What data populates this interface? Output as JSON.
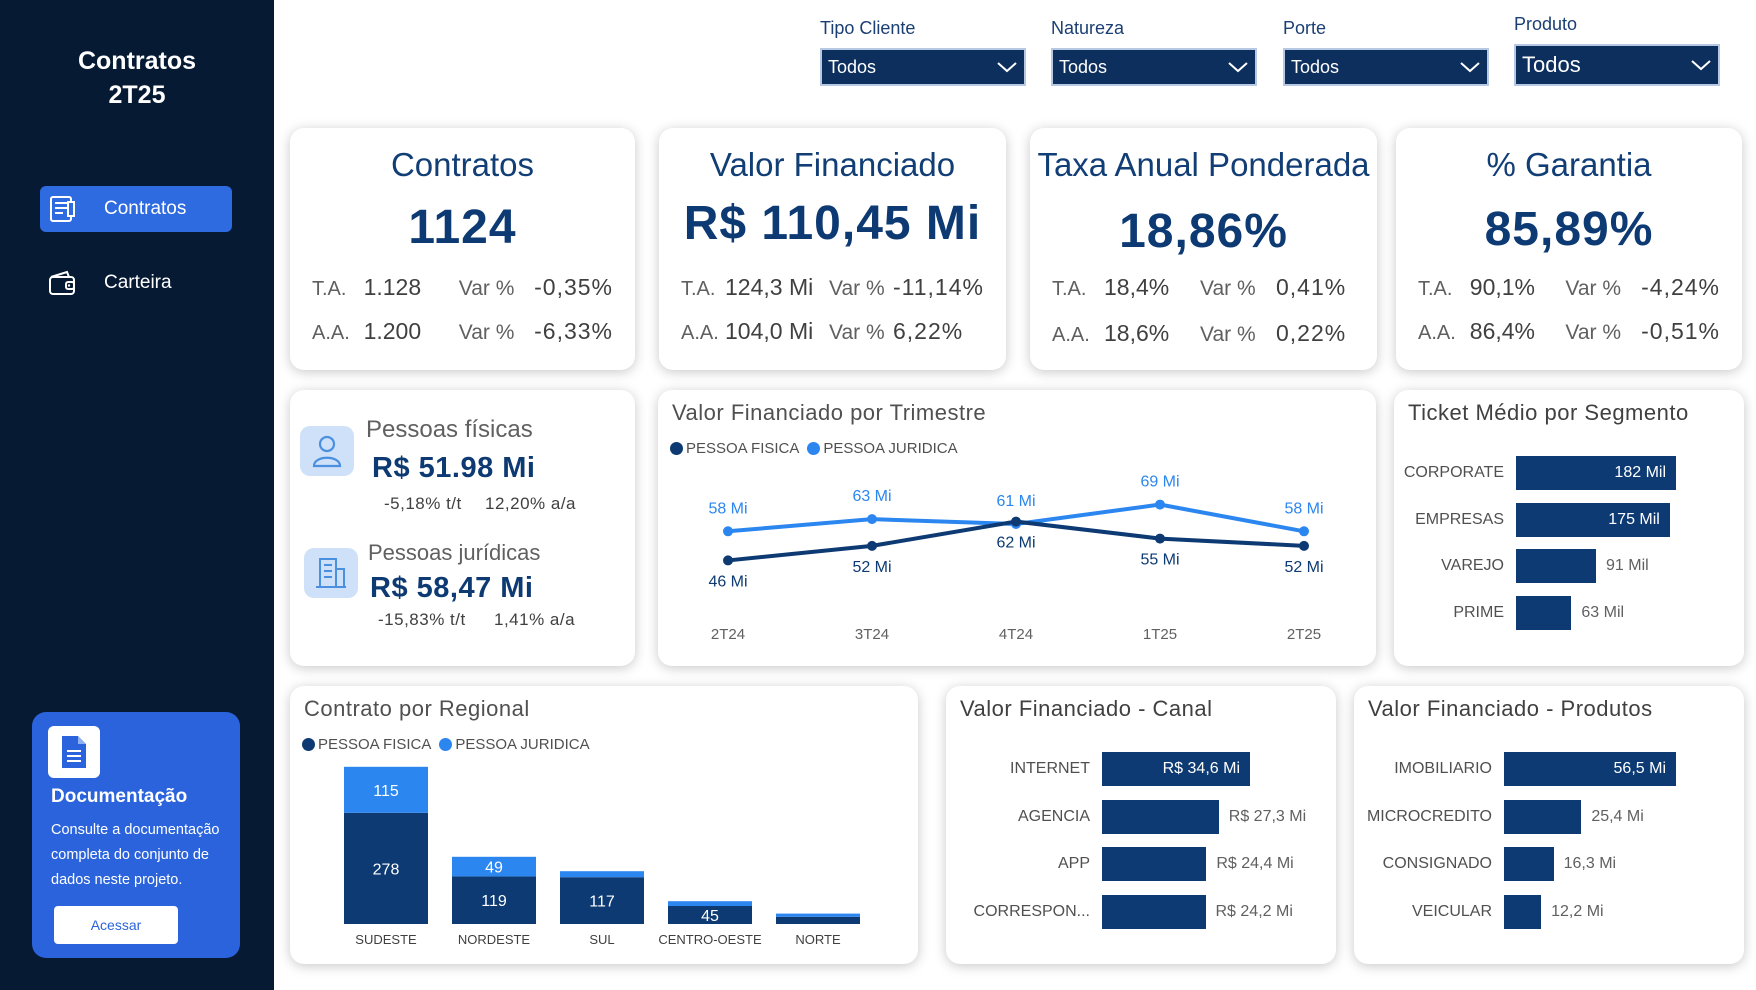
{
  "sidebar": {
    "title_line1": "Contratos",
    "title_line2": "2T25",
    "nav": [
      {
        "label": "Contratos",
        "icon": "document-list-icon",
        "active": true
      },
      {
        "label": "Carteira",
        "icon": "wallet-icon",
        "active": false
      }
    ],
    "doc_card": {
      "title": "Documentação",
      "text": "Consulte a documentação completa do conjunto de dados neste projeto.",
      "button": "Acessar"
    }
  },
  "filters": [
    {
      "label": "Tipo Cliente",
      "value": "Todos"
    },
    {
      "label": "Natureza",
      "value": "Todos"
    },
    {
      "label": "Porte",
      "value": "Todos"
    },
    {
      "label": "Produto",
      "value": "Todos"
    }
  ],
  "kpis": [
    {
      "title": "Contratos",
      "value": "1124",
      "ta_label": "T.A.",
      "ta": "1.128",
      "var_label": "Var %",
      "ta_var": "-0,35%",
      "aa_label": "A.A.",
      "aa": "1.200",
      "aa_var": "-6,33%"
    },
    {
      "title": "Valor Financiado",
      "value": "R$ 110,45 Mi",
      "ta_label": "T.A.",
      "ta": "124,3 Mi",
      "var_label": "Var %",
      "ta_var": "-11,14%",
      "aa_label": "A.A.",
      "aa": "104,0 Mi",
      "aa_var": "6,22%"
    },
    {
      "title": "Taxa Anual Ponderada",
      "value": "18,86%",
      "ta_label": "T.A.",
      "ta": "18,4%",
      "var_label": "Var %",
      "ta_var": "0,41%",
      "aa_label": "A.A.",
      "aa": "18,6%",
      "aa_var": "0,22%"
    },
    {
      "title": "% Garantia",
      "value": "85,89%",
      "ta_label": "T.A.",
      "ta": "90,1%",
      "var_label": "Var %",
      "ta_var": "-4,24%",
      "aa_label": "A.A.",
      "aa": "86,4%",
      "aa_var": "-0,51%"
    }
  ],
  "pessoas": {
    "fisicas": {
      "label": "Pessoas físicas",
      "value": "R$ 51.98 Mi",
      "tt": "-5,18% t/t",
      "aa": "12,20% a/a"
    },
    "juridicas": {
      "label": "Pessoas jurídicas",
      "value": "R$ 58,47 Mi",
      "tt": "-15,83% t/t",
      "aa": "1,41% a/a"
    }
  },
  "colors": {
    "dark": "#0d3a73",
    "light": "#2b86f0",
    "sidebar": "#061a33",
    "accent": "#2f6be0"
  },
  "chart_data": [
    {
      "type": "line",
      "title": "Valor Financiado por Trimestre",
      "categories": [
        "2T24",
        "3T24",
        "4T24",
        "1T25",
        "2T25"
      ],
      "series": [
        {
          "name": "PESSOA FISICA",
          "values": [
            46,
            52,
            62,
            55,
            52
          ],
          "labels": [
            "46 Mi",
            "52 Mi",
            "62 Mi",
            "55 Mi",
            "52 Mi"
          ]
        },
        {
          "name": "PESSOA JURIDICA",
          "values": [
            58,
            63,
            61,
            69,
            58
          ],
          "labels": [
            "58 Mi",
            "63 Mi",
            "61 Mi",
            "69 Mi",
            "58 Mi"
          ]
        }
      ]
    },
    {
      "type": "bar",
      "title": "Ticket Médio por Segmento",
      "categories": [
        "CORPORATE",
        "EMPRESAS",
        "VAREJO",
        "PRIME"
      ],
      "values": [
        182,
        175,
        91,
        63
      ],
      "labels": [
        "182 Mil",
        "175 Mil",
        "91 Mil",
        "63 Mil"
      ]
    },
    {
      "type": "bar",
      "stacked": true,
      "title": "Contrato por Regional",
      "categories": [
        "SUDESTE",
        "NORDESTE",
        "SUL",
        "CENTRO-OESTE",
        "NORTE"
      ],
      "series": [
        {
          "name": "PESSOA FISICA",
          "values": [
            278,
            119,
            117,
            45,
            18
          ],
          "labels": [
            "278",
            "119",
            "117",
            "45",
            ""
          ]
        },
        {
          "name": "PESSOA JURIDICA",
          "values": [
            115,
            49,
            15,
            12,
            8
          ],
          "labels": [
            "115",
            "49",
            "",
            "",
            ""
          ]
        }
      ]
    },
    {
      "type": "bar",
      "title": "Valor Financiado - Canal",
      "categories": [
        "INTERNET",
        "AGENCIA",
        "APP",
        "CORRESPON..."
      ],
      "values": [
        34.6,
        27.3,
        24.4,
        24.2
      ],
      "labels": [
        "R$ 34,6 Mi",
        "R$ 27,3 Mi",
        "R$ 24,4 Mi",
        "R$ 24,2 Mi"
      ]
    },
    {
      "type": "bar",
      "title": "Valor Financiado - Produtos",
      "categories": [
        "IMOBILIARIO",
        "MICROCREDITO",
        "CONSIGNADO",
        "VEICULAR"
      ],
      "values": [
        56.5,
        25.4,
        16.3,
        12.2
      ],
      "labels": [
        "56,5 Mi",
        "25,4 Mi",
        "16,3 Mi",
        "12,2 Mi"
      ]
    }
  ]
}
